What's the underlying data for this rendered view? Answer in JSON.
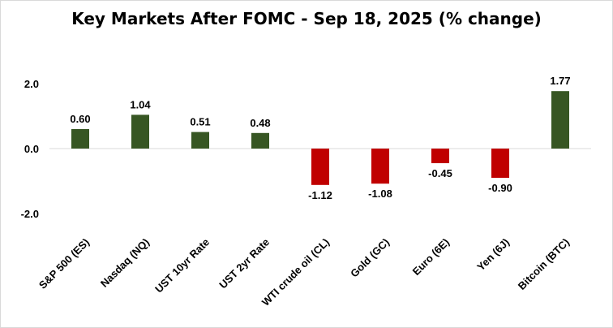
{
  "chart_data": {
    "type": "bar",
    "title": "Key Markets After FOMC - Sep 18, 2025 (% change)",
    "categories": [
      "S&P 500 (ES)",
      "Nasdaq (NQ)",
      "UST 10yr Rate",
      "UST 2yr Rate",
      "WTI crude oil (CL)",
      "Gold (GC)",
      "Euro (6E)",
      "Yen (6J)",
      "Bitcoin (BTC)"
    ],
    "values": [
      0.6,
      1.04,
      0.51,
      0.48,
      -1.12,
      -1.08,
      -0.45,
      -0.9,
      1.77
    ],
    "data_labels": [
      "0.60",
      "1.04",
      "0.51",
      "0.48",
      "-1.12",
      "-1.08",
      "-0.45",
      "-0.90",
      "1.77"
    ],
    "ylim": [
      -2.0,
      2.0
    ],
    "yticks": [
      2.0,
      0.0,
      -2.0
    ],
    "ytick_labels": [
      "2.0",
      "0.0",
      "-2.0"
    ],
    "xlabel": "",
    "ylabel": "",
    "grid": false,
    "legend": "none",
    "colors": {
      "positive": "#375623",
      "negative": "#c00000"
    }
  }
}
